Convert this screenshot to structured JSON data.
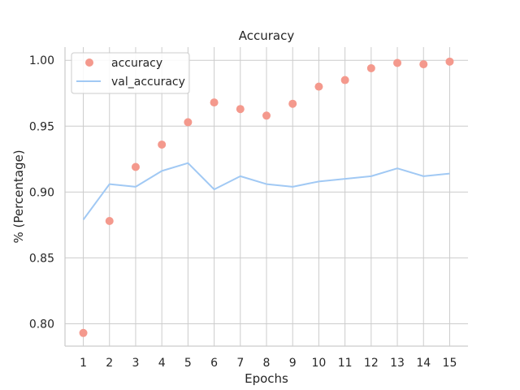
{
  "chart_data": {
    "type": "scatter+line",
    "title": "Accuracy",
    "xlabel": "Epochs",
    "ylabel": "% (Percentage)",
    "x": [
      1,
      2,
      3,
      4,
      5,
      6,
      7,
      8,
      9,
      10,
      11,
      12,
      13,
      14,
      15
    ],
    "xlim": [
      0.3,
      15.7
    ],
    "ylim": [
      0.783,
      1.01
    ],
    "yticks": [
      0.8,
      0.85,
      0.9,
      0.95,
      1.0
    ],
    "ytick_labels": [
      "0.80",
      "0.85",
      "0.90",
      "0.95",
      "1.00"
    ],
    "grid": true,
    "legend_position": "top-left",
    "series": [
      {
        "name": "accuracy",
        "style": "scatter",
        "color": "#f4998d",
        "values": [
          0.793,
          0.878,
          0.919,
          0.936,
          0.953,
          0.968,
          0.963,
          0.958,
          0.967,
          0.98,
          0.985,
          0.994,
          0.998,
          0.997,
          0.999
        ]
      },
      {
        "name": "val_accuracy",
        "style": "line",
        "color": "#a1c9f4",
        "values": [
          0.879,
          0.906,
          0.904,
          0.916,
          0.922,
          0.902,
          0.912,
          0.906,
          0.904,
          0.908,
          0.91,
          0.912,
          0.918,
          0.912,
          0.914
        ]
      }
    ]
  }
}
